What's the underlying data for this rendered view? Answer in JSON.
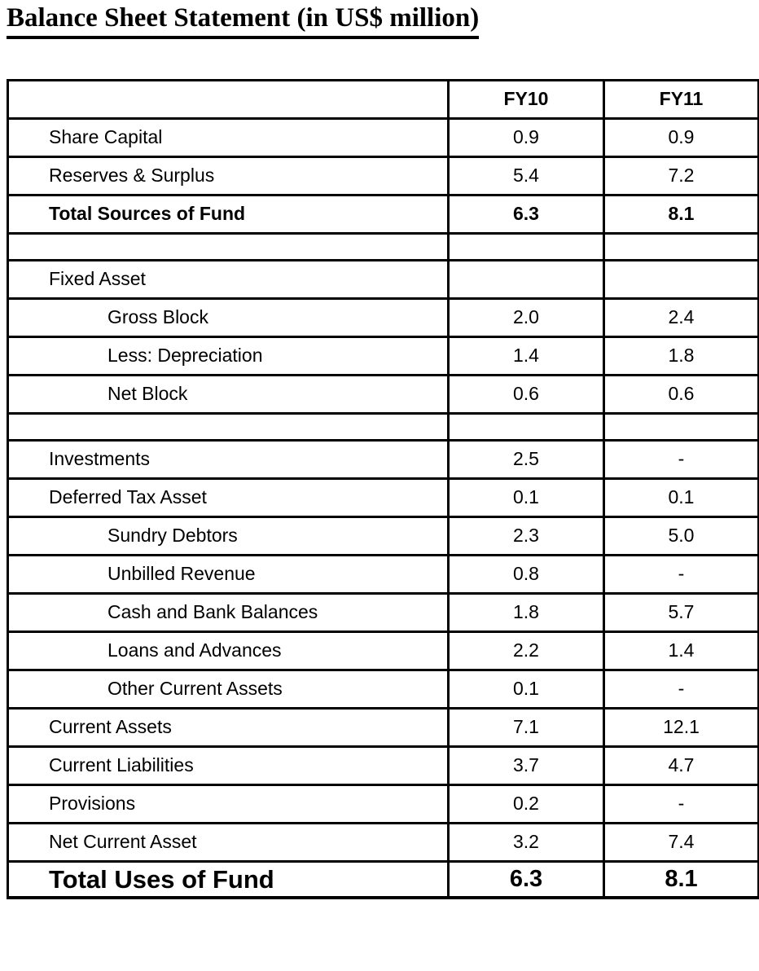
{
  "title": "Balance Sheet Statement (in US$ million)",
  "colors": {
    "background": "#ffffff",
    "text": "#000000",
    "border": "#000000"
  },
  "table": {
    "columns": [
      "FY10",
      "FY11"
    ],
    "rows": [
      {
        "label": "Share Capital",
        "fy10": "0.9",
        "fy11": "0.9",
        "indent": 1
      },
      {
        "label": "Reserves & Surplus",
        "fy10": "5.4",
        "fy11": "7.2",
        "indent": 1
      },
      {
        "label": "Total Sources of Fund",
        "fy10": "6.3",
        "fy11": "8.1",
        "indent": 1,
        "bold": true
      },
      {
        "empty": true
      },
      {
        "label": "Fixed Asset",
        "fy10": "",
        "fy11": "",
        "indent": 1
      },
      {
        "label": "Gross Block",
        "fy10": "2.0",
        "fy11": "2.4",
        "indent": 2
      },
      {
        "label": "Less: Depreciation",
        "fy10": "1.4",
        "fy11": "1.8",
        "indent": 2
      },
      {
        "label": "Net Block",
        "fy10": "0.6",
        "fy11": "0.6",
        "indent": 2
      },
      {
        "empty": true
      },
      {
        "label": "Investments",
        "fy10": "2.5",
        "fy11": "-",
        "indent": 1
      },
      {
        "label": "Deferred Tax Asset",
        "fy10": "0.1",
        "fy11": "0.1",
        "indent": 1
      },
      {
        "label": "Sundry Debtors",
        "fy10": "2.3",
        "fy11": "5.0",
        "indent": 2
      },
      {
        "label": "Unbilled Revenue",
        "fy10": "0.8",
        "fy11": "-",
        "indent": 2
      },
      {
        "label": "Cash and Bank Balances",
        "fy10": "1.8",
        "fy11": "5.7",
        "indent": 2
      },
      {
        "label": "Loans and Advances",
        "fy10": "2.2",
        "fy11": "1.4",
        "indent": 2
      },
      {
        "label": "Other Current Assets",
        "fy10": "0.1",
        "fy11": "-",
        "indent": 2
      },
      {
        "label": "Current Assets",
        "fy10": "7.1",
        "fy11": "12.1",
        "indent": 1
      },
      {
        "label": "Current Liabilities",
        "fy10": "3.7",
        "fy11": "4.7",
        "indent": 1
      },
      {
        "label": "Provisions",
        "fy10": "0.2",
        "fy11": "-",
        "indent": 1
      },
      {
        "label": "Net Current Asset",
        "fy10": "3.2",
        "fy11": "7.4",
        "indent": 1
      },
      {
        "label": "Total Uses of Fund",
        "fy10": "6.3",
        "fy11": "8.1",
        "indent": 1,
        "grand": true
      }
    ]
  }
}
